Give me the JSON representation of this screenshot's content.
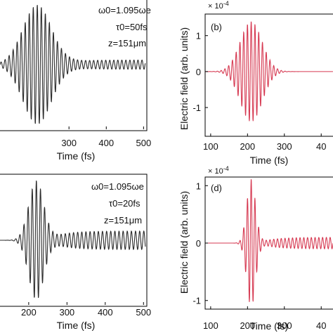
{
  "chart_data": [
    {
      "type": "line",
      "panel": "a",
      "xlabel": "Time (fs)",
      "xticks": [
        "300",
        "400",
        "500"
      ],
      "xlim": [
        115,
        505
      ],
      "ylim": [
        -1.4,
        1.4
      ],
      "color": "#2b2b2b",
      "annotations": [
        "ω0=1.095ωe",
        "τ0=50fs",
        "z=151μm"
      ],
      "series": [
        {
          "peak_time_fs": 215,
          "peak_amplitude": 1.3,
          "pulse_width_fs": 55,
          "tail_amplitude": 0.1,
          "period_fs": 10.8
        }
      ]
    },
    {
      "type": "line",
      "panel": "b",
      "xlabel": "Time (fs)",
      "ylabel": "Electric field (arb. units)",
      "exponent": "× 10^-4",
      "xticks": [
        "100",
        "200",
        "300",
        "40"
      ],
      "yticks": [
        "1",
        "0",
        "-1"
      ],
      "xlim": [
        85,
        432
      ],
      "ylim": [
        -1.8,
        1.6
      ],
      "color": "#d63a52",
      "series": [
        {
          "peak_time_fs": 210,
          "peak_amplitude": 1.4,
          "pulse_width_fs": 42,
          "tail_amplitude": 0.0,
          "period_fs": 10.2
        }
      ]
    },
    {
      "type": "line",
      "panel": "c",
      "xlabel": "Time (fs)",
      "xticks": [
        "200",
        "300",
        "400",
        "500"
      ],
      "xlim": [
        125,
        505
      ],
      "ylim": [
        -1.4,
        1.4
      ],
      "color": "#2b2b2b",
      "annotations": [
        "ω0=1.095ωe",
        "τ0=20fs",
        "z=151μm"
      ],
      "series": [
        {
          "peak_time_fs": 220,
          "peak_amplitude": 1.3,
          "pulse_width_fs": 28,
          "tail_amplitude": 0.2,
          "period_fs": 10.8
        }
      ]
    },
    {
      "type": "line",
      "panel": "d",
      "xlabel": "Time (fs)",
      "ylabel": "Electric field (arb. units)",
      "exponent": "× 10^-4",
      "xticks": [
        "100",
        "200",
        "300",
        "40"
      ],
      "yticks": [
        "1",
        "0",
        "-1"
      ],
      "xlim": [
        85,
        432
      ],
      "ylim": [
        -1.15,
        1.15
      ],
      "color": "#d63a52",
      "series": [
        {
          "peak_time_fs": 210,
          "peak_amplitude": 1.12,
          "pulse_width_fs": 17,
          "tail_amplitude": 0.1,
          "period_fs": 10.2
        }
      ]
    }
  ],
  "labels": {
    "a_ann_1": "ω0=1.095ωe",
    "a_ann_2": "τ0=50fs",
    "a_ann_3": "z=151μm",
    "c_ann_1": "ω0=1.095ωe",
    "c_ann_2": "τ0=20fs",
    "c_ann_3": "z=151μm",
    "b_tag": "(b)",
    "d_tag": "(d)",
    "x_label": "Time (fs)",
    "y_label": "Electric field (arb. units)",
    "exp_base": "× 10",
    "exp_pow": "-4"
  }
}
